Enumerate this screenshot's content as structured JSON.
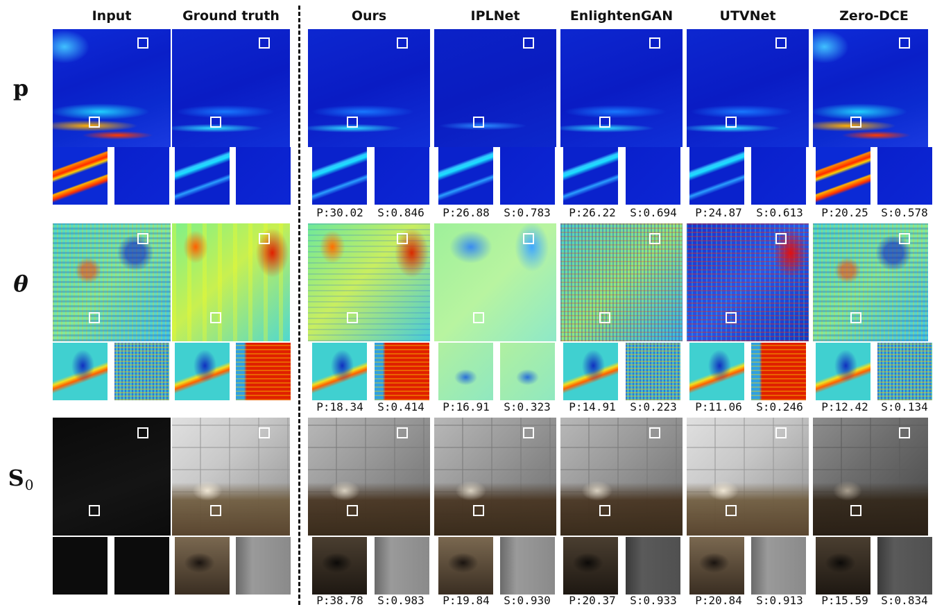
{
  "columns": [
    {
      "label": "Input"
    },
    {
      "label": "Ground truth"
    },
    {
      "label": "Ours"
    },
    {
      "label": "IPLNet"
    },
    {
      "label": "EnlightenGAN"
    },
    {
      "label": "UTVNet"
    },
    {
      "label": "Zero-DCE"
    }
  ],
  "rows": [
    {
      "symbol": "p",
      "metrics": [
        {
          "psnr": "P:30.02",
          "ssim": "S:0.846"
        },
        {
          "psnr": "P:26.88",
          "ssim": "S:0.783"
        },
        {
          "psnr": "P:26.22",
          "ssim": "S:0.694"
        },
        {
          "psnr": "P:24.87",
          "ssim": "S:0.613"
        },
        {
          "psnr": "P:20.25",
          "ssim": "S:0.578"
        }
      ]
    },
    {
      "symbol": "θ",
      "metrics": [
        {
          "psnr": "P:18.34",
          "ssim": "S:0.414"
        },
        {
          "psnr": "P:16.91",
          "ssim": "S:0.323"
        },
        {
          "psnr": "P:14.91",
          "ssim": "S:0.223"
        },
        {
          "psnr": "P:11.06",
          "ssim": "S:0.246"
        },
        {
          "psnr": "P:12.42",
          "ssim": "S:0.134"
        }
      ]
    },
    {
      "symbol": "S",
      "subscript": "0",
      "metrics": [
        {
          "psnr": "P:38.78",
          "ssim": "S:0.983"
        },
        {
          "psnr": "P:19.84",
          "ssim": "S:0.930"
        },
        {
          "psnr": "P:20.37",
          "ssim": "S:0.933"
        },
        {
          "psnr": "P:20.84",
          "ssim": "S:0.913"
        },
        {
          "psnr": "P:15.59",
          "ssim": "S:0.834"
        }
      ]
    }
  ]
}
